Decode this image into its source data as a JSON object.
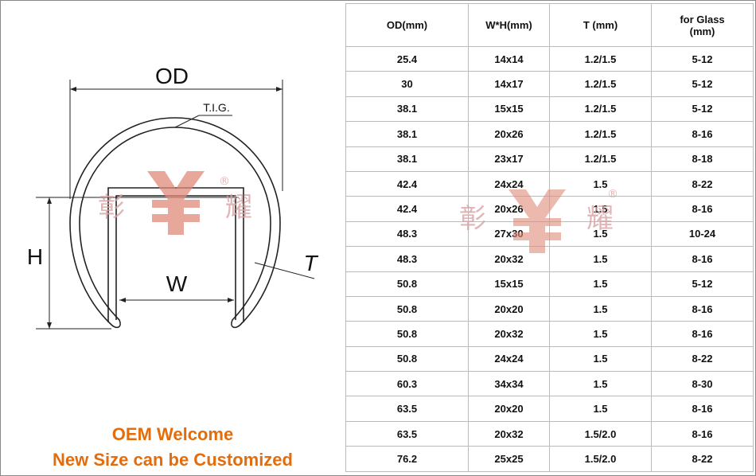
{
  "diagram": {
    "od_label": "OD",
    "tig_label": "T.I.G.",
    "h_label": "H",
    "w_label": "W",
    "t_label": "T",
    "watermark_left": "彰",
    "watermark_right": "耀",
    "registered": "®"
  },
  "captions": [
    "OEM Welcome",
    "New Size can be Customized"
  ],
  "table": {
    "header": [
      "OD(mm)",
      "W*H(mm)",
      "T (mm)",
      "for Glass\n(mm)"
    ],
    "rows": [
      [
        "25.4",
        "14x14",
        "1.2/1.5",
        "5-12"
      ],
      [
        "30",
        "14x17",
        "1.2/1.5",
        "5-12"
      ],
      [
        "38.1",
        "15x15",
        "1.2/1.5",
        "5-12"
      ],
      [
        "38.1",
        "20x26",
        "1.2/1.5",
        "8-16"
      ],
      [
        "38.1",
        "23x17",
        "1.2/1.5",
        "8-18"
      ],
      [
        "42.4",
        "24x24",
        "1.5",
        "8-22"
      ],
      [
        "42.4",
        "20x26",
        "1.5",
        "8-16"
      ],
      [
        "48.3",
        "27x30",
        "1.5",
        "10-24"
      ],
      [
        "48.3",
        "20x32",
        "1.5",
        "8-16"
      ],
      [
        "50.8",
        "15x15",
        "1.5",
        "5-12"
      ],
      [
        "50.8",
        "20x20",
        "1.5",
        "8-16"
      ],
      [
        "50.8",
        "20x32",
        "1.5",
        "8-16"
      ],
      [
        "50.8",
        "24x24",
        "1.5",
        "8-22"
      ],
      [
        "60.3",
        "34x34",
        "1.5",
        "8-30"
      ],
      [
        "63.5",
        "20x20",
        "1.5",
        "8-16"
      ],
      [
        "63.5",
        "20x32",
        "1.5/2.0",
        "8-16"
      ],
      [
        "76.2",
        "25x25",
        "1.5/2.0",
        "8-22"
      ]
    ]
  }
}
